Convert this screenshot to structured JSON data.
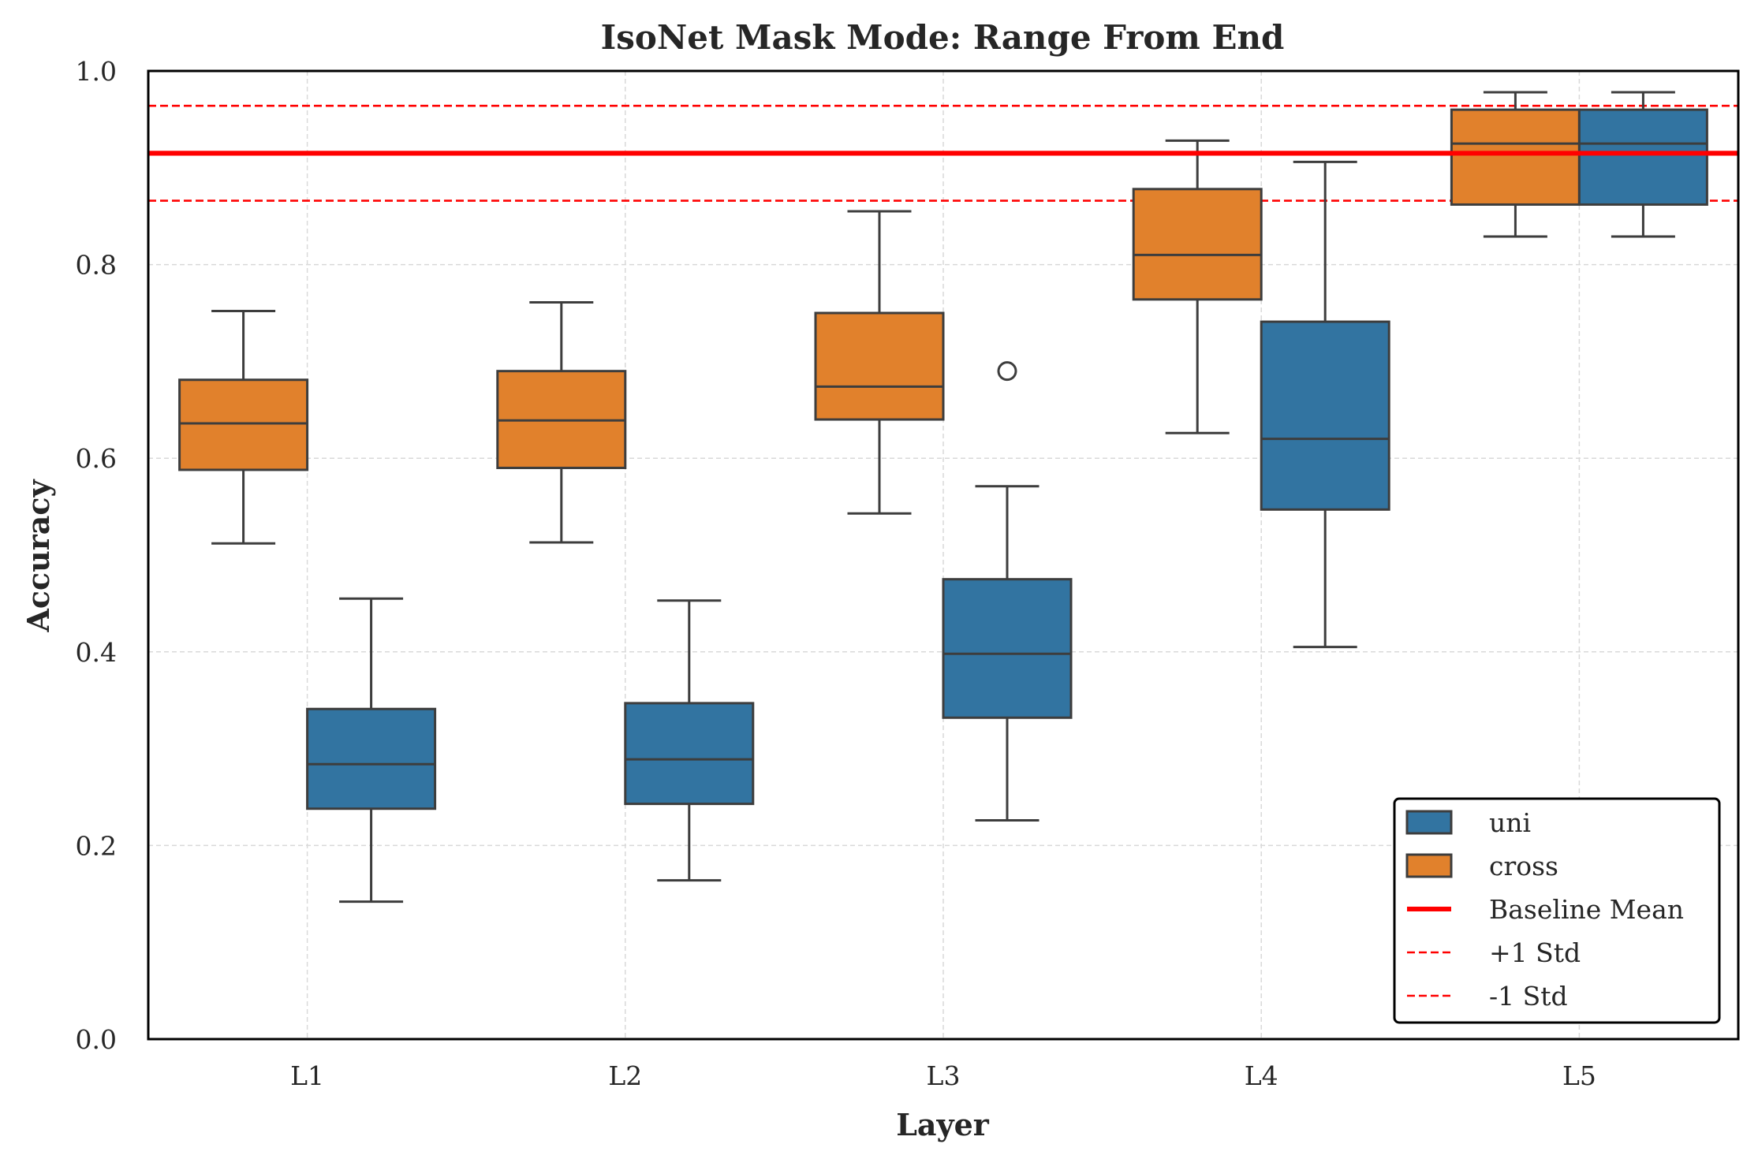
{
  "chart_data": {
    "type": "box",
    "title": "IsoNet Mask Mode: Range From End",
    "xlabel": "Layer",
    "ylabel": "Accuracy",
    "ylim": [
      0.0,
      1.0
    ],
    "yticks": [
      "0.0",
      "0.2",
      "0.4",
      "0.6",
      "0.8",
      "1.0"
    ],
    "yticks_values": [
      0.0,
      0.2,
      0.4,
      0.6,
      0.8,
      1.0
    ],
    "categories": [
      "L1",
      "L2",
      "L3",
      "L4",
      "L5"
    ],
    "grid": true,
    "legend_position": "bottom-right",
    "colors": {
      "uni": "#3274a1",
      "cross": "#e1812c",
      "baseline": "#ff0000",
      "box_edge": "#3d3d3d",
      "grid": "#d9d9d9"
    },
    "series": [
      {
        "name": "cross",
        "boxes": [
          {
            "category": "L1",
            "whisker_low": 0.512,
            "q1": 0.588,
            "median": 0.636,
            "q3": 0.681,
            "whisker_high": 0.752,
            "outliers": []
          },
          {
            "category": "L2",
            "whisker_low": 0.513,
            "q1": 0.59,
            "median": 0.639,
            "q3": 0.69,
            "whisker_high": 0.761,
            "outliers": []
          },
          {
            "category": "L3",
            "whisker_low": 0.543,
            "q1": 0.64,
            "median": 0.674,
            "q3": 0.75,
            "whisker_high": 0.855,
            "outliers": []
          },
          {
            "category": "L4",
            "whisker_low": 0.626,
            "q1": 0.764,
            "median": 0.81,
            "q3": 0.878,
            "whisker_high": 0.928,
            "outliers": []
          },
          {
            "category": "L5",
            "whisker_low": 0.829,
            "q1": 0.862,
            "median": 0.925,
            "q3": 0.96,
            "whisker_high": 0.978,
            "outliers": []
          }
        ]
      },
      {
        "name": "uni",
        "boxes": [
          {
            "category": "L1",
            "whisker_low": 0.142,
            "q1": 0.238,
            "median": 0.284,
            "q3": 0.341,
            "whisker_high": 0.455,
            "outliers": []
          },
          {
            "category": "L2",
            "whisker_low": 0.164,
            "q1": 0.243,
            "median": 0.289,
            "q3": 0.347,
            "whisker_high": 0.453,
            "outliers": []
          },
          {
            "category": "L3",
            "whisker_low": 0.226,
            "q1": 0.332,
            "median": 0.398,
            "q3": 0.475,
            "whisker_high": 0.571,
            "outliers": [
              0.69
            ]
          },
          {
            "category": "L4",
            "whisker_low": 0.405,
            "q1": 0.547,
            "median": 0.62,
            "q3": 0.741,
            "whisker_high": 0.906,
            "outliers": []
          },
          {
            "category": "L5",
            "whisker_low": 0.829,
            "q1": 0.862,
            "median": 0.925,
            "q3": 0.96,
            "whisker_high": 0.978,
            "outliers": []
          }
        ]
      }
    ],
    "reference_lines": [
      {
        "name": "Baseline Mean",
        "value": 0.915,
        "style": "solid"
      },
      {
        "name": "+1 Std",
        "value": 0.964,
        "style": "dashed"
      },
      {
        "name": "-1 Std",
        "value": 0.866,
        "style": "dashed"
      }
    ],
    "legend": [
      "uni",
      "cross",
      "Baseline Mean",
      "+1 Std",
      "-1 Std"
    ]
  }
}
